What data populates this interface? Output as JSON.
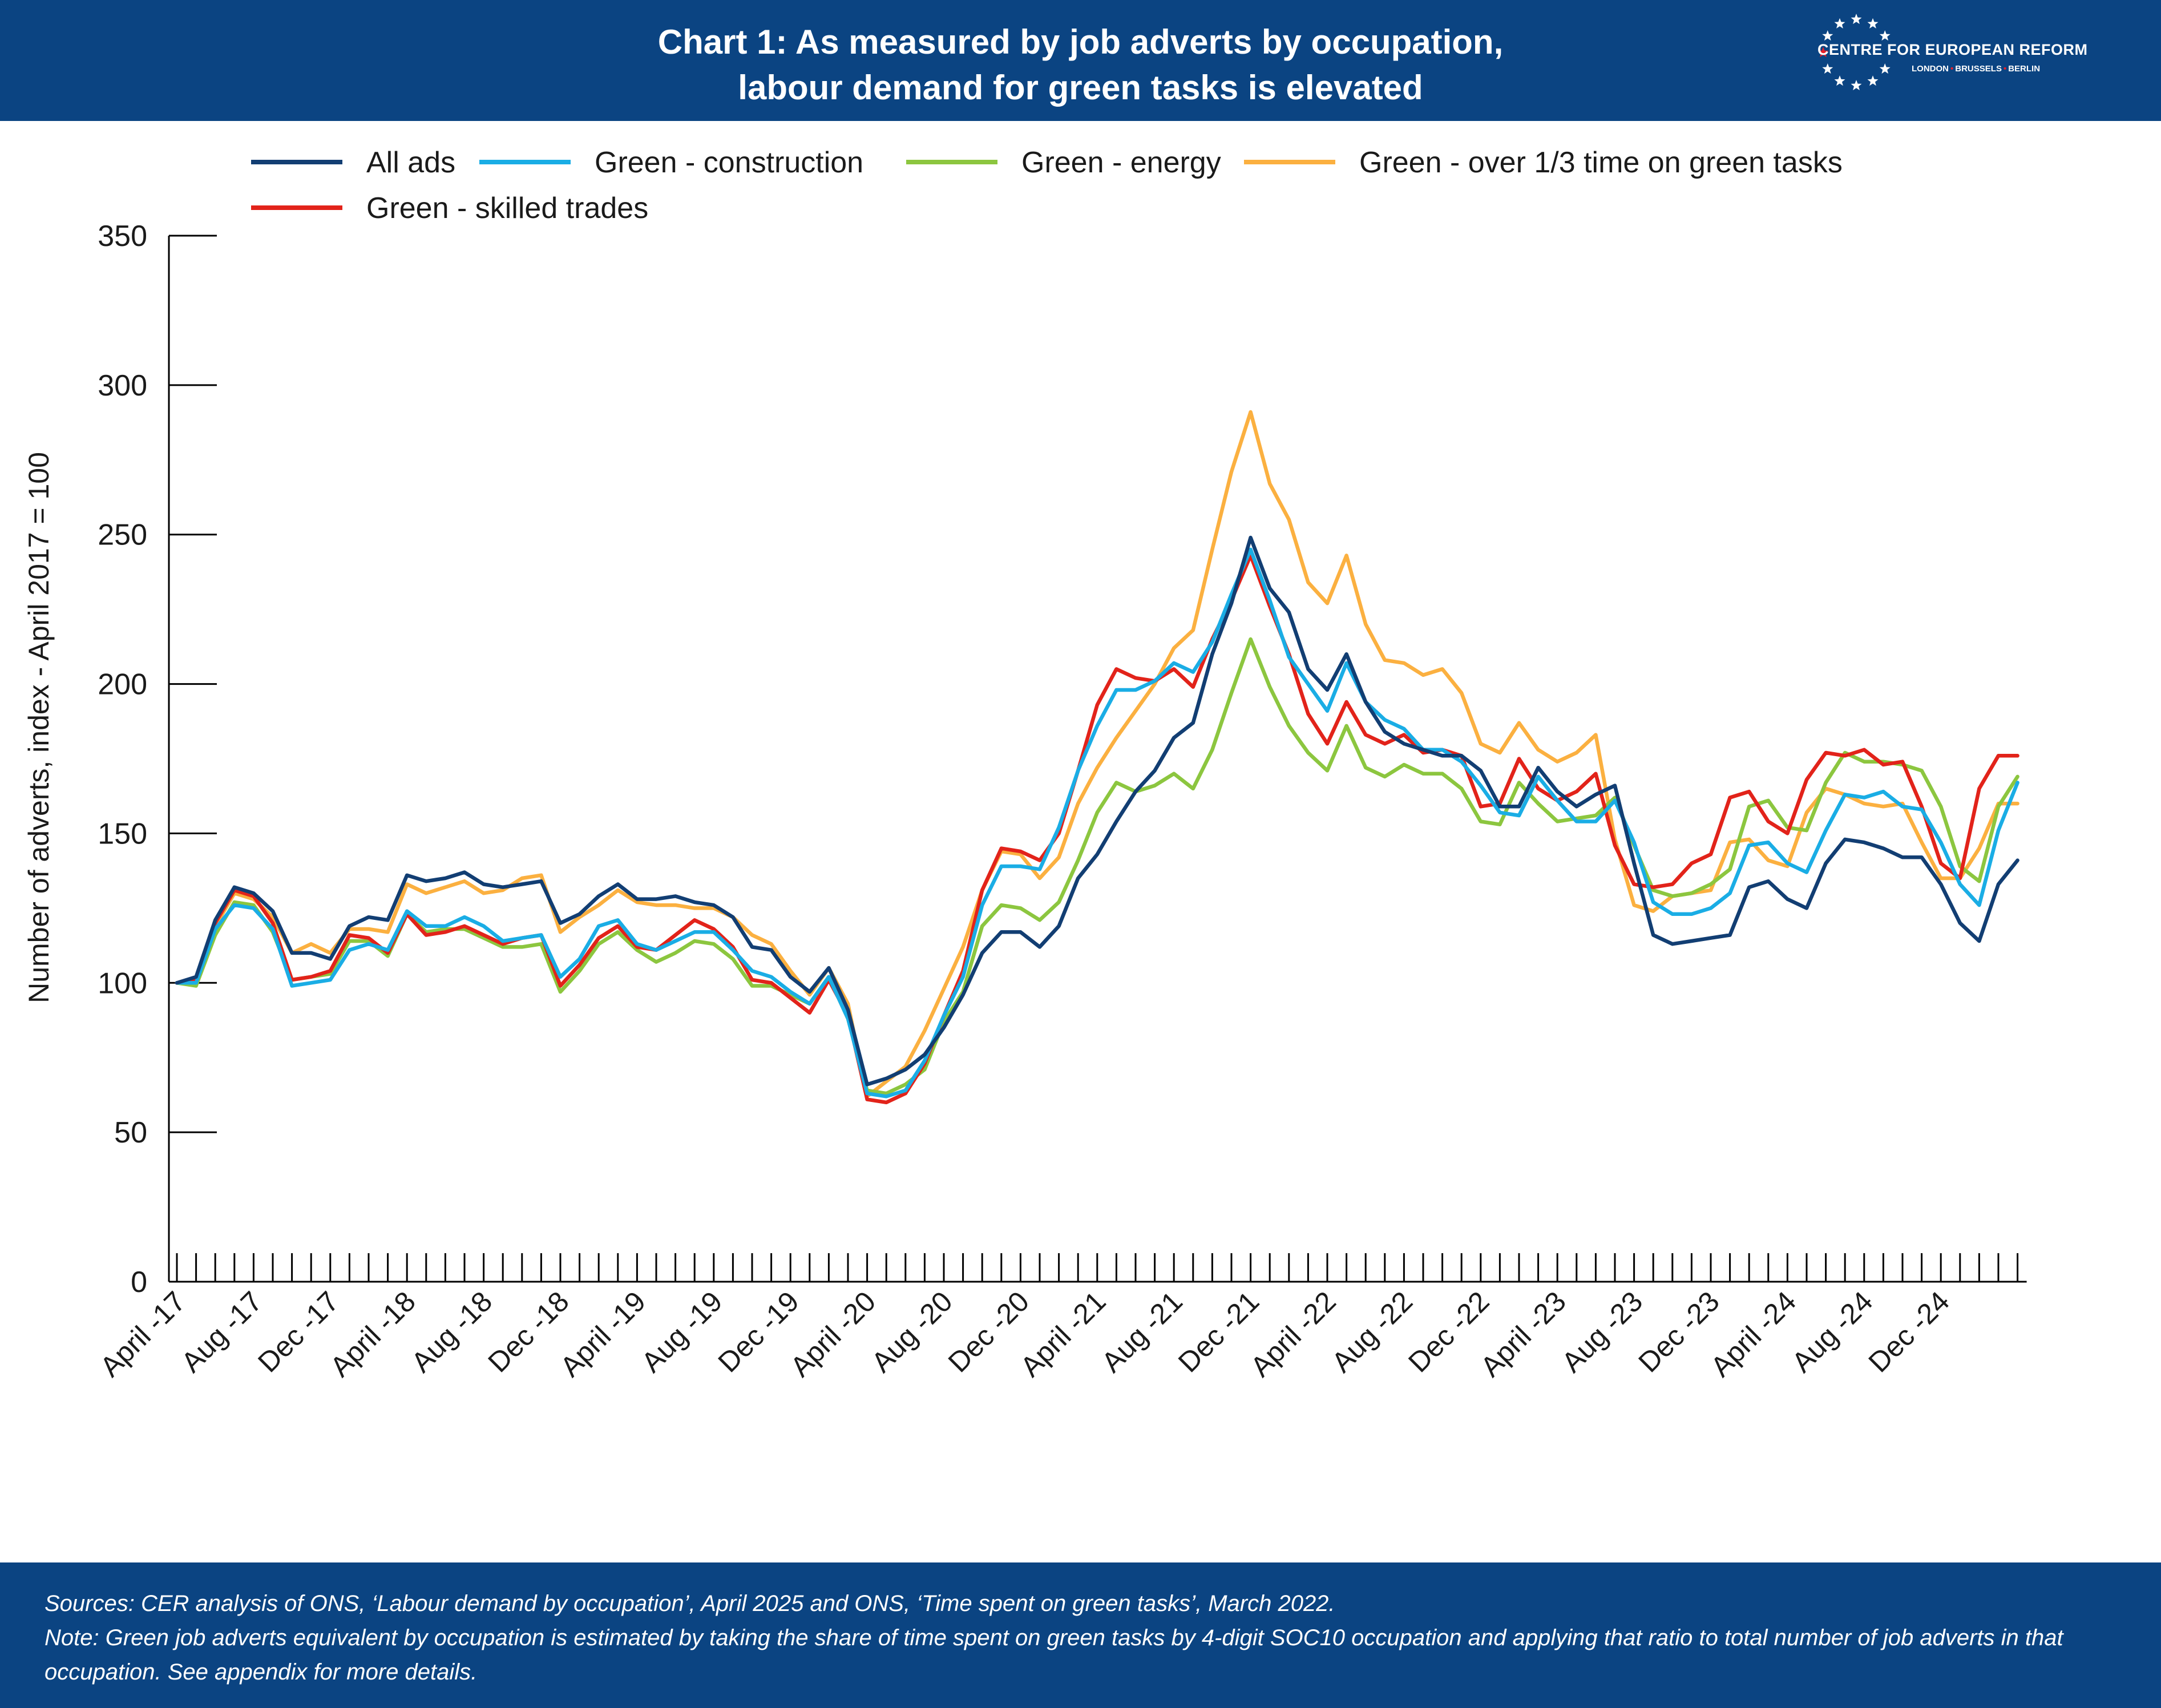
{
  "header": {
    "title_line1": "Chart 1: As measured by job adverts by occupation,",
    "title_line2": "labour demand for green tasks is elevated",
    "logo": {
      "name": "CENTRE FOR EUROPEAN REFORM",
      "city1": "LONDON",
      "city2": "BRUSSELS",
      "city3": "BERLIN",
      "icon": "eu-stars-circle-icon"
    }
  },
  "footer": {
    "sources": "Sources: CER analysis of ONS, ‘Labour demand by occupation’, April 2025 and ONS, ‘Time spent on green tasks’, March 2022.",
    "note": "Note: Green job adverts equivalent by occupation is estimated by taking the share of time spent on green tasks by 4-digit SOC10 occupation and applying that ratio to total number of job adverts in that occupation. See appendix for more details."
  },
  "colors": {
    "header_bg": "#0b4482",
    "all_ads": "#123e73",
    "green_construction": "#1aade5",
    "green_energy": "#8cc63f",
    "green_over_third": "#fbb040",
    "green_skilled_trades": "#e2231a"
  },
  "chart_data": {
    "type": "line",
    "title": "Chart 1: As measured by job adverts by occupation, labour demand for green tasks is elevated",
    "ylabel": "Number of adverts, index - April 2017 = 100",
    "xlabel": "",
    "ylim": [
      0,
      350
    ],
    "yticks": [
      0,
      50,
      100,
      150,
      200,
      250,
      300,
      350
    ],
    "grid": false,
    "legend_position": "top",
    "x_start": "April 2017",
    "x_end": "March 2025",
    "x_tick_labels": [
      "April -17",
      "Aug -17",
      "Dec -17",
      "April -18",
      "Aug -18",
      "Dec -18",
      "April -19",
      "Aug -19",
      "Dec -19",
      "April -20",
      "Aug -20",
      "Dec -20",
      "April -21",
      "Aug -21",
      "Dec -21",
      "April -22",
      "Aug -22",
      "Dec -22",
      "April -23",
      "Aug -23",
      "Dec -23",
      "April -24",
      "Aug -24",
      "Dec -24"
    ],
    "x_tick_label_every": 4,
    "series": [
      {
        "name": "All ads",
        "color": "#123e73",
        "values": [
          100,
          102,
          121,
          132,
          130,
          124,
          110,
          110,
          108,
          119,
          122,
          121,
          136,
          134,
          135,
          137,
          133,
          132,
          133,
          134,
          120,
          123,
          129,
          133,
          128,
          128,
          129,
          127,
          126,
          122,
          112,
          111,
          102,
          97,
          105,
          91,
          66,
          68,
          71,
          76,
          85,
          96,
          110,
          117,
          117,
          112,
          119,
          135,
          143,
          154,
          164,
          171,
          182,
          187,
          210,
          227,
          249,
          232,
          224,
          205,
          198,
          210,
          194,
          184,
          180,
          178,
          176,
          176,
          171,
          159,
          159,
          172,
          164,
          159,
          163,
          166,
          140,
          116,
          113,
          114,
          115,
          116,
          132,
          134,
          128,
          125,
          140,
          148,
          147,
          145,
          142,
          142,
          133,
          120,
          114,
          133,
          141
        ]
      },
      {
        "name": "Green - construction",
        "color": "#1aade5",
        "values": [
          100,
          100,
          118,
          126,
          125,
          118,
          99,
          100,
          101,
          111,
          113,
          111,
          124,
          119,
          119,
          122,
          119,
          114,
          115,
          116,
          102,
          108,
          119,
          121,
          113,
          111,
          114,
          117,
          117,
          111,
          104,
          102,
          97,
          93,
          102,
          88,
          63,
          62,
          64,
          74,
          89,
          102,
          126,
          139,
          139,
          138,
          152,
          171,
          186,
          198,
          198,
          201,
          207,
          204,
          214,
          230,
          245,
          228,
          209,
          200,
          191,
          207,
          194,
          188,
          185,
          178,
          178,
          174,
          166,
          157,
          156,
          169,
          161,
          154,
          154,
          161,
          147,
          127,
          123,
          123,
          125,
          130,
          146,
          147,
          140,
          137,
          151,
          163,
          162,
          164,
          159,
          158,
          147,
          133,
          126,
          151,
          167
        ]
      },
      {
        "name": "Green - energy",
        "color": "#8cc63f",
        "values": [
          100,
          99,
          116,
          127,
          126,
          117,
          101,
          102,
          103,
          114,
          114,
          109,
          123,
          117,
          118,
          118,
          115,
          112,
          112,
          113,
          97,
          104,
          113,
          117,
          111,
          107,
          110,
          114,
          113,
          108,
          99,
          99,
          96,
          93,
          102,
          88,
          64,
          63,
          66,
          71,
          87,
          97,
          119,
          126,
          125,
          121,
          127,
          141,
          157,
          167,
          164,
          166,
          170,
          165,
          178,
          197,
          215,
          199,
          186,
          177,
          171,
          186,
          172,
          169,
          173,
          170,
          170,
          165,
          154,
          153,
          167,
          160,
          154,
          155,
          156,
          162,
          146,
          131,
          129,
          130,
          133,
          138,
          159,
          161,
          152,
          151,
          167,
          177,
          174,
          174,
          173,
          171,
          159,
          139,
          134,
          159,
          169
        ]
      },
      {
        "name": "Green - over 1/3 time on green tasks",
        "color": "#fbb040",
        "values": [
          100,
          101,
          119,
          130,
          128,
          122,
          110,
          113,
          110,
          118,
          118,
          117,
          133,
          130,
          132,
          134,
          130,
          131,
          135,
          136,
          117,
          122,
          126,
          131,
          127,
          126,
          126,
          125,
          125,
          122,
          116,
          113,
          104,
          96,
          105,
          93,
          62,
          67,
          72,
          84,
          98,
          112,
          131,
          144,
          143,
          135,
          142,
          160,
          172,
          182,
          191,
          200,
          212,
          218,
          245,
          271,
          291,
          267,
          255,
          234,
          227,
          243,
          220,
          208,
          207,
          203,
          205,
          197,
          180,
          177,
          187,
          178,
          174,
          177,
          183,
          148,
          126,
          124,
          129,
          130,
          131,
          147,
          148,
          141,
          139,
          157,
          165,
          163,
          160,
          159,
          160,
          147,
          135,
          135,
          145,
          160,
          160
        ]
      },
      {
        "name": "Green - skilled trades",
        "color": "#e2231a",
        "values": [
          100,
          101,
          120,
          131,
          129,
          120,
          101,
          102,
          104,
          116,
          115,
          110,
          123,
          116,
          117,
          119,
          116,
          113,
          115,
          116,
          99,
          106,
          115,
          119,
          112,
          111,
          116,
          121,
          118,
          112,
          101,
          100,
          95,
          90,
          101,
          89,
          61,
          60,
          63,
          73,
          89,
          104,
          131,
          145,
          144,
          141,
          150,
          171,
          193,
          205,
          202,
          201,
          205,
          199,
          215,
          228,
          243,
          226,
          210,
          190,
          180,
          194,
          183,
          180,
          183,
          177,
          178,
          176,
          159,
          160,
          175,
          165,
          161,
          164,
          170,
          146,
          133,
          132,
          133,
          140,
          143,
          162,
          164,
          154,
          150,
          168,
          177,
          176,
          178,
          173,
          174,
          159,
          140,
          135,
          165,
          176,
          176
        ]
      }
    ]
  }
}
